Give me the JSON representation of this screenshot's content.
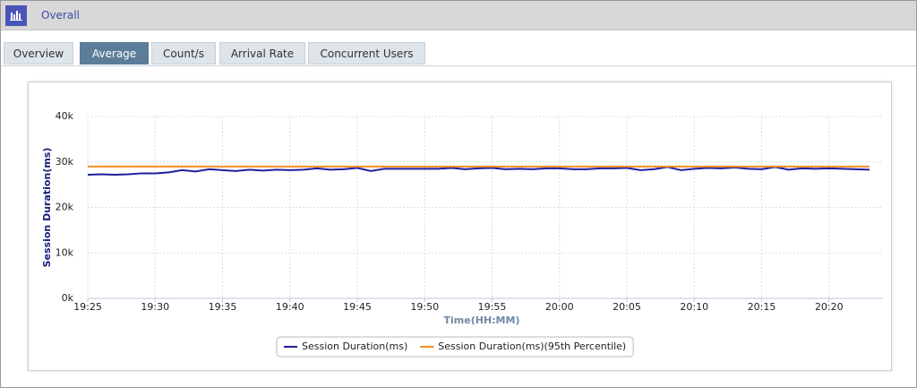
{
  "header": {
    "title": "Overall"
  },
  "tabs": [
    "Overview",
    "Average",
    "Count/s",
    "Arrival Rate",
    "Concurrent Users"
  ],
  "active_tab": 1,
  "chart_data": {
    "type": "line",
    "ylabel": "Session Duration(ms)",
    "xlabel": "Time(HH:MM)",
    "x": [
      "19:25",
      "19:26",
      "19:27",
      "19:28",
      "19:29",
      "19:30",
      "19:31",
      "19:32",
      "19:33",
      "19:34",
      "19:35",
      "19:36",
      "19:37",
      "19:38",
      "19:39",
      "19:40",
      "19:41",
      "19:42",
      "19:43",
      "19:44",
      "19:45",
      "19:46",
      "19:47",
      "19:48",
      "19:49",
      "19:50",
      "19:51",
      "19:52",
      "19:53",
      "19:54",
      "19:55",
      "19:56",
      "19:57",
      "19:58",
      "19:59",
      "20:00",
      "20:01",
      "20:02",
      "20:03",
      "20:04",
      "20:05",
      "20:06",
      "20:07",
      "20:08",
      "20:09",
      "20:10",
      "20:11",
      "20:12",
      "20:13",
      "20:14",
      "20:15",
      "20:16",
      "20:17",
      "20:18",
      "20:19",
      "20:20",
      "20:21",
      "20:22",
      "20:23"
    ],
    "series": [
      {
        "name": "Session Duration(ms)",
        "color": "#1f1f9e",
        "values": [
          27200,
          27300,
          27200,
          27300,
          27500,
          27500,
          27700,
          28200,
          27900,
          28400,
          28200,
          28000,
          28300,
          28100,
          28300,
          28200,
          28300,
          28600,
          28300,
          28400,
          28700,
          28000,
          28500,
          28500,
          28500,
          28500,
          28500,
          28700,
          28400,
          28600,
          28700,
          28400,
          28500,
          28400,
          28600,
          28600,
          28400,
          28400,
          28600,
          28600,
          28700,
          28200,
          28400,
          28900,
          28200,
          28500,
          28700,
          28600,
          28800,
          28500,
          28400,
          28900,
          28300,
          28600,
          28500,
          28600,
          28500,
          28400,
          28300
        ]
      },
      {
        "name": "Session Duration(ms)(95th Percentile)",
        "color": "#f28c28",
        "values": [
          29000,
          29000,
          29000,
          29000,
          29000,
          29000,
          29000,
          29000,
          29000,
          29000,
          29000,
          29000,
          29000,
          29000,
          29000,
          29000,
          29000,
          29000,
          29000,
          29000,
          29000,
          29000,
          29000,
          29000,
          29000,
          29000,
          29000,
          29000,
          29000,
          29000,
          29000,
          29000,
          29000,
          29000,
          29000,
          29000,
          29000,
          29000,
          29000,
          29000,
          29000,
          29000,
          29000,
          29000,
          29000,
          29000,
          29000,
          29000,
          29000,
          29000,
          29000,
          29000,
          29000,
          29000,
          29000,
          29000,
          29000,
          29000,
          29000
        ]
      }
    ],
    "xlim": [
      "19:25",
      "20:24"
    ],
    "xticks": [
      "19:25",
      "19:30",
      "19:35",
      "19:40",
      "19:45",
      "19:50",
      "19:55",
      "20:00",
      "20:05",
      "20:10",
      "20:15",
      "20:20"
    ],
    "ylim": [
      0,
      40000
    ],
    "yticks": [
      {
        "value": 0,
        "label": "0k"
      },
      {
        "value": 10000,
        "label": "10k"
      },
      {
        "value": 20000,
        "label": "20k"
      },
      {
        "value": 30000,
        "label": "30k"
      },
      {
        "value": 40000,
        "label": "40k"
      }
    ],
    "grid": true,
    "legend": "bottom"
  }
}
